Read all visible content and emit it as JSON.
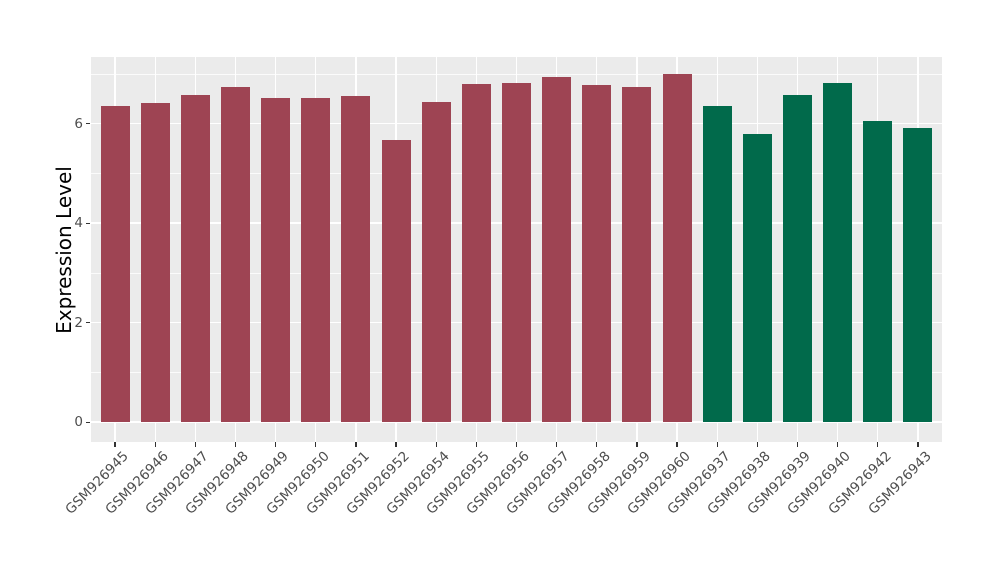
{
  "chart_data": {
    "type": "bar",
    "title": "",
    "xlabel": "",
    "ylabel": "Expression Level",
    "categories": [
      "GSM926945",
      "GSM926946",
      "GSM926947",
      "GSM926948",
      "GSM926949",
      "GSM926950",
      "GSM926951",
      "GSM926952",
      "GSM926954",
      "GSM926955",
      "GSM926956",
      "GSM926957",
      "GSM926958",
      "GSM926959",
      "GSM926960",
      "GSM926937",
      "GSM926938",
      "GSM926939",
      "GSM926940",
      "GSM926942",
      "GSM926943"
    ],
    "values": [
      6.35,
      6.42,
      6.57,
      6.74,
      6.52,
      6.51,
      6.55,
      5.68,
      6.44,
      6.8,
      6.82,
      6.94,
      6.77,
      6.73,
      6.99,
      6.35,
      5.8,
      6.58,
      6.82,
      6.06,
      5.92
    ],
    "groups": [
      "group1",
      "group1",
      "group1",
      "group1",
      "group1",
      "group1",
      "group1",
      "group1",
      "group1",
      "group1",
      "group1",
      "group1",
      "group1",
      "group1",
      "group1",
      "group2",
      "group2",
      "group2",
      "group2",
      "group2",
      "group2"
    ],
    "group_colors": {
      "group1": "#9E4453",
      "group2": "#016A4B"
    },
    "ylim": [
      -0.4,
      7.34
    ],
    "yticks": [
      0,
      2,
      4,
      6
    ],
    "yticks_minor": [
      1,
      3,
      5,
      7
    ],
    "grid": "on",
    "legend_position": "none",
    "panel_background": "#EBEBEB",
    "grid_color": "#FFFFFF",
    "axis_text_color": "#4D4D4D",
    "axis_title_color": "#000000",
    "tick_mark_color": "#333333",
    "figure_background": "#FFFFFF"
  }
}
